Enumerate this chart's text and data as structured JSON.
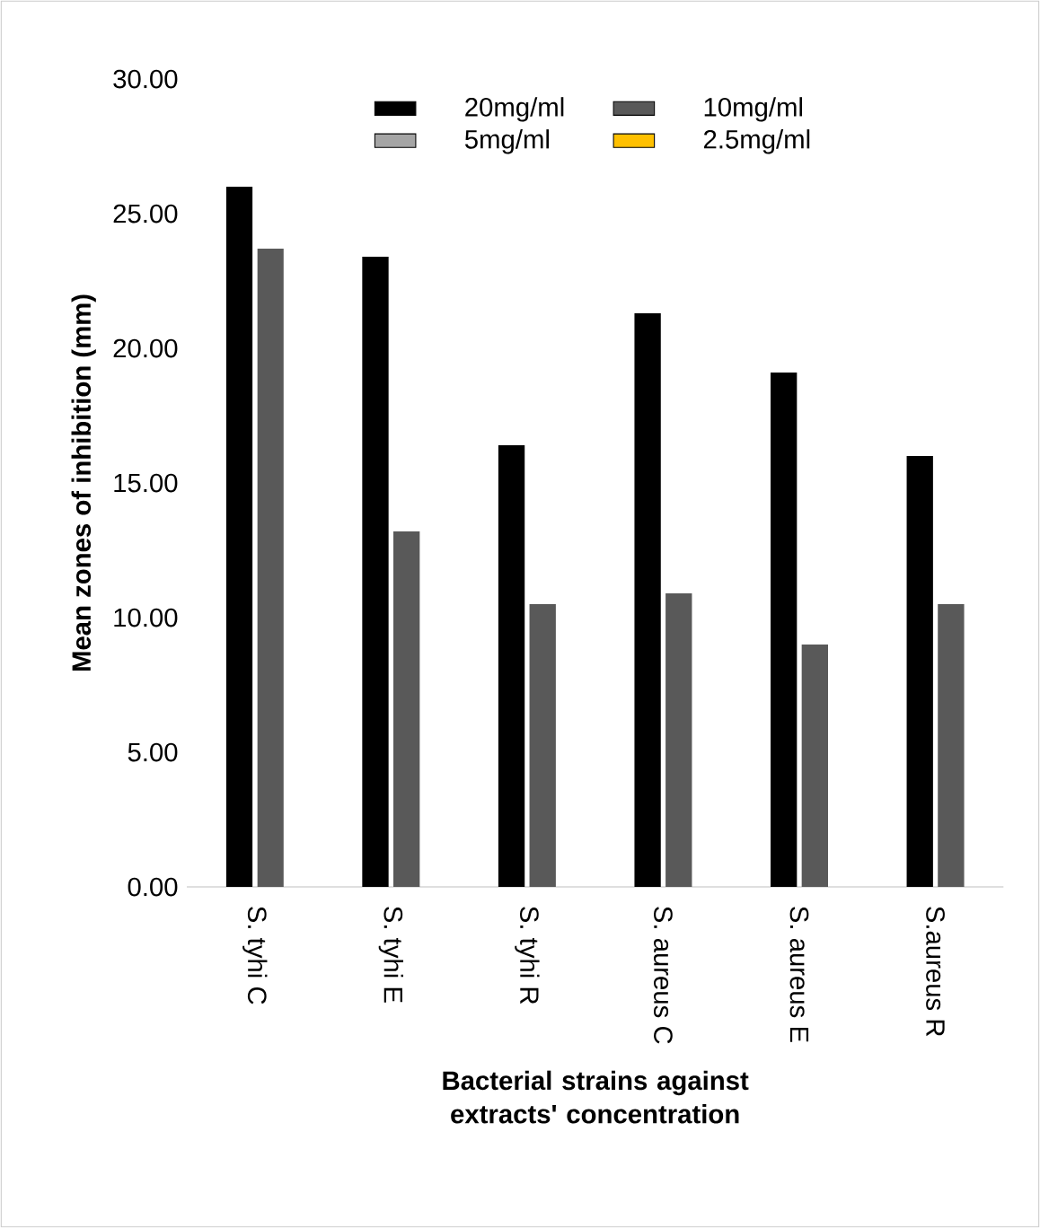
{
  "chart_data": {
    "type": "bar",
    "xlabel": "Bacterial strains against extracts' concentration",
    "ylabel": "Mean zones of inhibition  (mm)",
    "categories": [
      "S. tyhi C",
      "S. tyhi E",
      "S. tyhi R",
      "S. aureus C",
      "S. aureus E",
      "S.aureus R"
    ],
    "series": [
      {
        "name": "20mg/ml",
        "color": "#000000",
        "values": [
          26.0,
          23.4,
          16.4,
          21.3,
          19.1,
          16.0
        ]
      },
      {
        "name": "10mg/ml",
        "color": "#595959",
        "values": [
          23.7,
          13.2,
          10.5,
          10.9,
          9.0,
          10.5
        ]
      },
      {
        "name": "5mg/ml",
        "color": "#a5a5a5",
        "values": [
          null,
          null,
          null,
          null,
          null,
          null
        ]
      },
      {
        "name": "2.5mg/ml",
        "color": "#ffc000",
        "values": [
          null,
          null,
          null,
          null,
          null,
          null
        ]
      }
    ],
    "ylim": [
      0,
      30
    ],
    "yticks": [
      {
        "value": 0,
        "label": "0.00"
      },
      {
        "value": 5,
        "label": "5.00"
      },
      {
        "value": 10,
        "label": "10.00"
      },
      {
        "value": 15,
        "label": "15.00"
      },
      {
        "value": 20,
        "label": "20.00"
      },
      {
        "value": 25,
        "label": "25.00"
      },
      {
        "value": 30,
        "label": "30.00"
      }
    ],
    "legend": "top"
  }
}
